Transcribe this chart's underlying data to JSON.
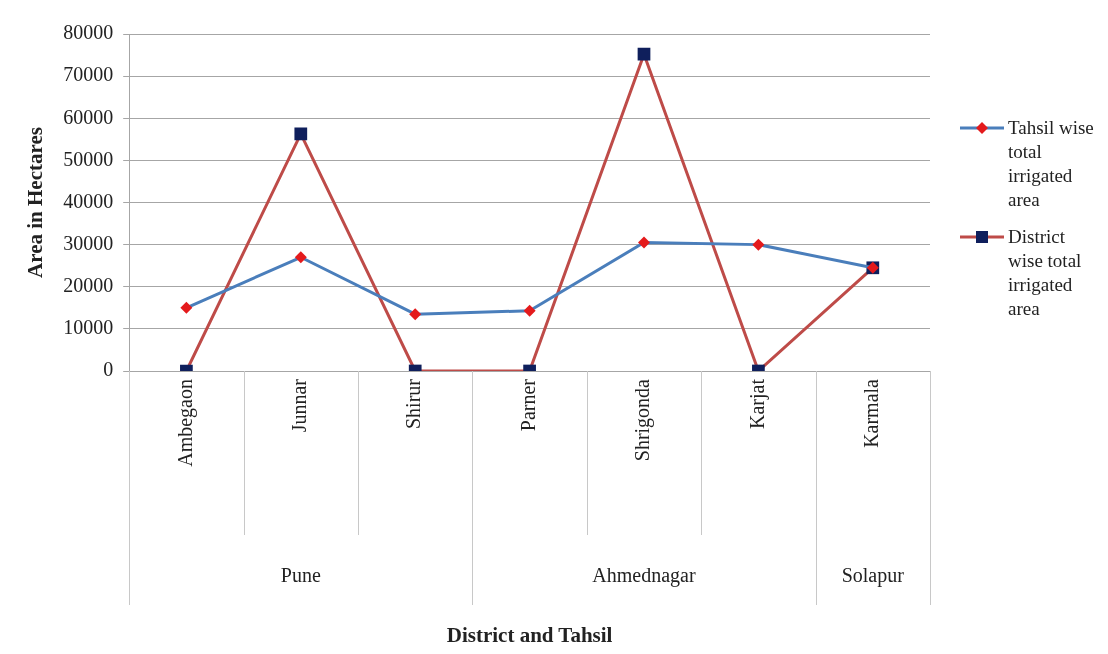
{
  "chart_data": {
    "type": "line",
    "ylabel": "Area in Hectares",
    "categories": [
      "Ambegaon",
      "Junnar",
      "Shirur",
      "Parner",
      "Shrigonda",
      "Karjat",
      "Karmala"
    ],
    "series": [
      {
        "name": "Tahsil wise total irrigated area",
        "color": "#4a7ebb",
        "marker": "diamond",
        "colors": [
          "#e41a1c",
          "#e41a1c",
          "#e41a1c",
          "#e41a1c",
          "#e41a1c",
          "#e41a1c",
          "#e41a1c"
        ],
        "values": [
          15000,
          27000,
          13500,
          14300,
          30500,
          30000,
          24500
        ]
      },
      {
        "name": "District wise total irrigated area",
        "color": "#be4b48",
        "marker": "square",
        "colors": [
          "#0f1f5c",
          "#0f1f5c",
          "#0f1f5c",
          "#0f1f5c",
          "#0f1f5c",
          "#0f1f5c",
          "#0f1f5c"
        ],
        "values": [
          0,
          56300,
          0,
          0,
          75200,
          0,
          24500
        ]
      }
    ],
    "annotations": [
      "Pune",
      "Ahmednagar",
      "Solapur",
      "District and Tahsil"
    ],
    "ylim": [
      0,
      80000
    ],
    "yticks": [
      0,
      10000,
      20000,
      30000,
      40000,
      50000,
      60000,
      70000,
      80000
    ],
    "grid": "y",
    "legend": "right",
    "line_style": "solid"
  }
}
